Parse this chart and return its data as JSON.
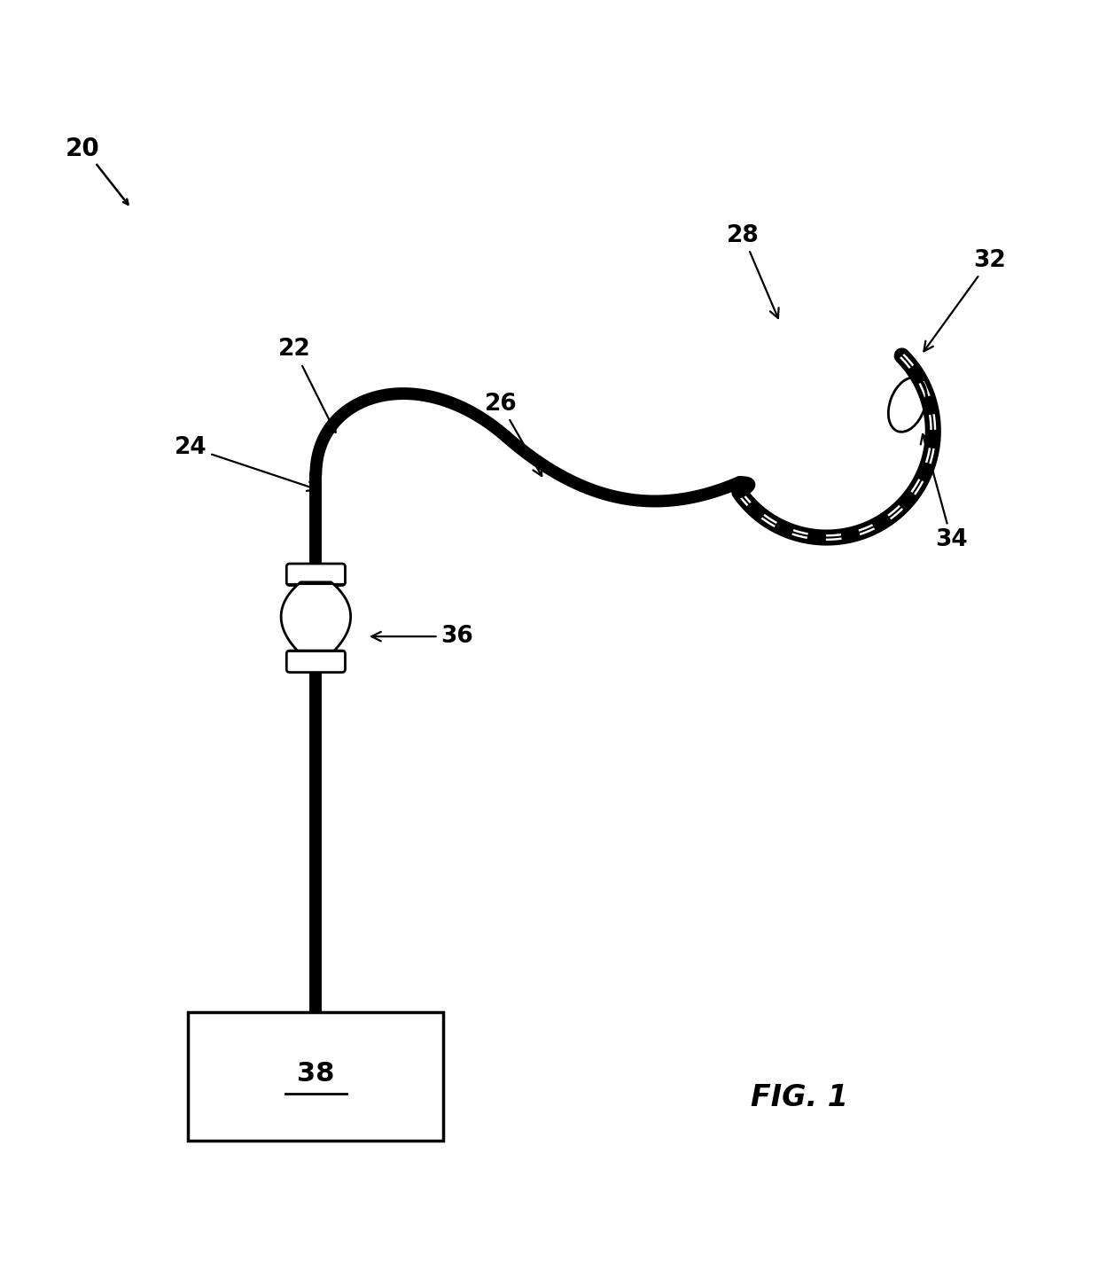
{
  "bg_color": "#ffffff",
  "line_color": "#000000",
  "fig_width": 12.4,
  "fig_height": 14.51,
  "label_20": "20",
  "label_22": "22",
  "label_24": "24",
  "label_26": "26",
  "label_28": "28",
  "label_32": "32",
  "label_34": "34",
  "label_36": "36",
  "label_38": "38",
  "fig_label": "FIG. 1",
  "catheter_lw": 10,
  "loop_outer_lw": 13,
  "loop_white_lw": 5,
  "loop_inner_lw": 1.5
}
